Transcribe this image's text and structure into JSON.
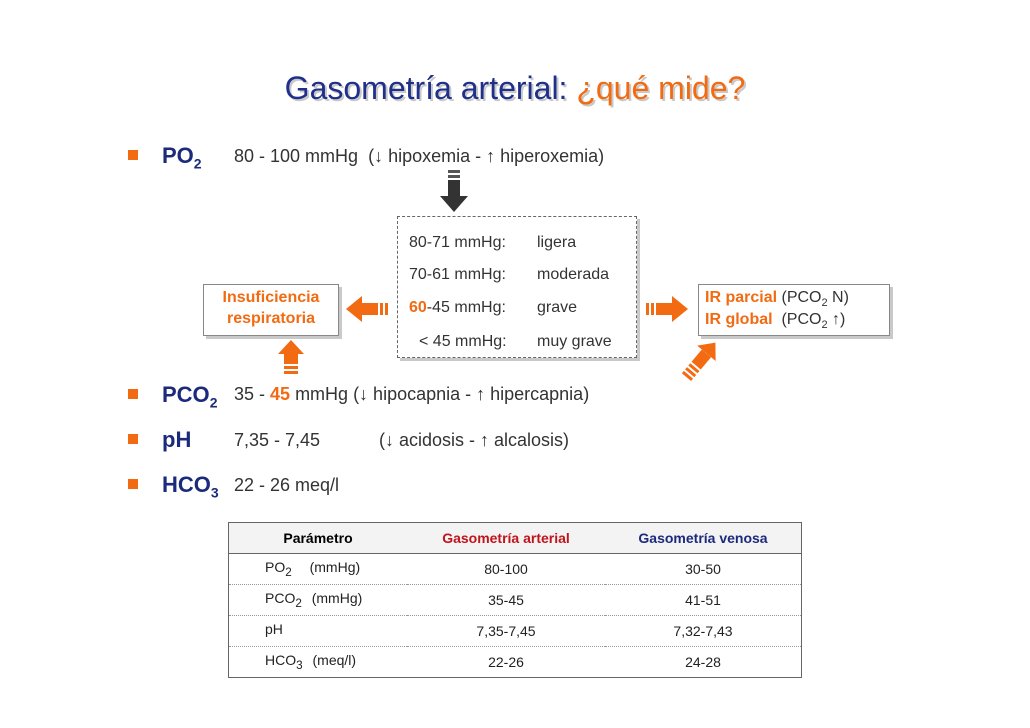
{
  "title": {
    "main": "Gasometría arterial:",
    "question": "¿qué mide?"
  },
  "po2": {
    "label": "PO",
    "sub": "2",
    "range": "80 - 100 mmHg",
    "desc": "(↓ hipoxemia - ↑ hiperoxemia)"
  },
  "severity": [
    {
      "range": "80-71 mmHg:",
      "level": "ligera"
    },
    {
      "range": "70-61 mmHg:",
      "level": "moderada"
    },
    {
      "range_hi": "60",
      "range_rest": "-45 mmHg:",
      "level": "grave"
    },
    {
      "range": "< 45 mmHg:",
      "level": "muy grave"
    }
  ],
  "insuficiencia": {
    "line1": "Insuficiencia",
    "line2": "respiratoria"
  },
  "ir": {
    "parcial_label": "IR parcial",
    "parcial_open": "(PCO",
    "parcial_sub": "2",
    "parcial_close": " N)",
    "global_label": "IR global",
    "global_open": "(PCO",
    "global_sub": "2",
    "global_close": " ↑)"
  },
  "pco2": {
    "label": "PCO",
    "sub": "2",
    "range_start": "35 - ",
    "range_hi": "45",
    "range_end": " mmHg (↓ hipocapnia - ↑ hipercapnia)"
  },
  "ph": {
    "label": "pH",
    "range": "7,35 - 7,45",
    "desc": "(↓ acidosis - ↑ alcalosis)"
  },
  "hco3": {
    "label": "HCO",
    "sub": "3",
    "range": "22 - 26 meq/l"
  },
  "table": {
    "headers": [
      "Parámetro",
      "Gasometría arterial",
      "Gasometría venosa"
    ],
    "header_colors": [
      "#000000",
      "#c0141c",
      "#1c2a7c"
    ],
    "rows": [
      {
        "param": "PO",
        "sub": "2",
        "unit": "(mmHg)",
        "arterial": "80-100",
        "venosa": "30-50"
      },
      {
        "param": "PCO",
        "sub": "2",
        "unit": "(mmHg)",
        "arterial": "35-45",
        "venosa": "41-51"
      },
      {
        "param": "pH",
        "sub": "",
        "unit": "",
        "arterial": "7,35-7,45",
        "venosa": "7,32-7,43"
      },
      {
        "param": "HCO",
        "sub": "3",
        "unit": "(meq/l)",
        "arterial": "22-26",
        "venosa": "24-28"
      }
    ]
  },
  "colors": {
    "accent": "#f26b12",
    "navy": "#1c2a7c",
    "red": "#c0141c"
  }
}
